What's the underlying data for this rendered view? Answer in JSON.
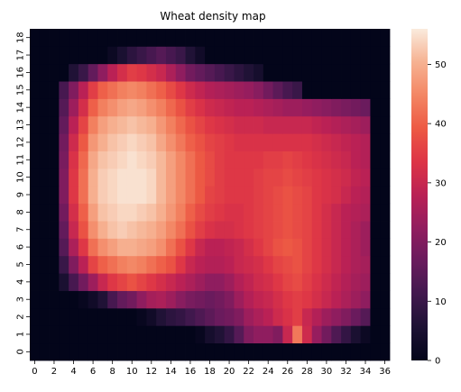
{
  "chart_data": {
    "type": "heatmap",
    "title": "Wheat density map",
    "xlabel": "",
    "ylabel": "",
    "x_ticks": [
      "0",
      "2",
      "4",
      "6",
      "8",
      "10",
      "12",
      "14",
      "16",
      "18",
      "20",
      "22",
      "24",
      "26",
      "28",
      "30",
      "32",
      "34",
      "36"
    ],
    "y_ticks": [
      "0",
      "1",
      "2",
      "3",
      "4",
      "5",
      "6",
      "7",
      "8",
      "9",
      "10",
      "11",
      "12",
      "13",
      "14",
      "15",
      "16",
      "17",
      "18"
    ],
    "colorbar": {
      "min": 0,
      "max": 56,
      "ticks": [
        "0",
        "10",
        "20",
        "30",
        "40",
        "50"
      ]
    },
    "colormap": "rocket",
    "grid": false,
    "legend": "colorbar-right",
    "columns": 37,
    "rows": 19,
    "cells_row0_bottom": [
      [
        0,
        0,
        0,
        0,
        0,
        0,
        0,
        0,
        0,
        0,
        0,
        0,
        0,
        0,
        0,
        0,
        0,
        0,
        0,
        0,
        0,
        0,
        0,
        0,
        0,
        0,
        0,
        0,
        0,
        0,
        0,
        0,
        0,
        0,
        0,
        0,
        0
      ],
      [
        0,
        0,
        0,
        0,
        0,
        0,
        0,
        0,
        0,
        0,
        0,
        0,
        0,
        0,
        0,
        0,
        0,
        1,
        4,
        6,
        9,
        14,
        20,
        22,
        22,
        20,
        30,
        43,
        31,
        23,
        18,
        13,
        9,
        5,
        2,
        0,
        0
      ],
      [
        0,
        0,
        0,
        0,
        0,
        0,
        0,
        0,
        0,
        0,
        0,
        1,
        3,
        6,
        8,
        9,
        11,
        13,
        15,
        17,
        18,
        20,
        24,
        26,
        28,
        31,
        33,
        35,
        30,
        27,
        24,
        22,
        20,
        17,
        14,
        0,
        0
      ],
      [
        0,
        0,
        0,
        0,
        0,
        1,
        3,
        6,
        12,
        16,
        18,
        22,
        25,
        26,
        24,
        21,
        19,
        18,
        17,
        18,
        20,
        24,
        27,
        29,
        30,
        32,
        34,
        35,
        34,
        32,
        30,
        28,
        26,
        24,
        22,
        0,
        0
      ],
      [
        0,
        0,
        0,
        5,
        12,
        18,
        24,
        30,
        34,
        36,
        38,
        36,
        34,
        32,
        30,
        28,
        26,
        24,
        22,
        22,
        24,
        27,
        29,
        31,
        32,
        34,
        36,
        37,
        35,
        33,
        31,
        29,
        27,
        25,
        24,
        0,
        0
      ],
      [
        0,
        0,
        0,
        10,
        20,
        28,
        36,
        40,
        42,
        44,
        45,
        44,
        42,
        40,
        38,
        34,
        30,
        28,
        27,
        27,
        28,
        30,
        31,
        32,
        34,
        36,
        37,
        38,
        36,
        34,
        32,
        30,
        28,
        26,
        25,
        0,
        0
      ],
      [
        0,
        0,
        0,
        14,
        26,
        34,
        42,
        46,
        48,
        50,
        50,
        49,
        48,
        46,
        42,
        38,
        34,
        30,
        28,
        28,
        29,
        30,
        32,
        34,
        36,
        38,
        39,
        38,
        36,
        34,
        32,
        30,
        28,
        26,
        24,
        0,
        0
      ],
      [
        0,
        0,
        0,
        16,
        30,
        38,
        46,
        50,
        52,
        53,
        52,
        51,
        50,
        48,
        45,
        42,
        38,
        35,
        33,
        32,
        32,
        33,
        34,
        35,
        36,
        37,
        38,
        37,
        36,
        34,
        32,
        30,
        28,
        26,
        24,
        0,
        0
      ],
      [
        0,
        0,
        0,
        18,
        32,
        40,
        48,
        52,
        53,
        54,
        54,
        53,
        52,
        50,
        47,
        44,
        40,
        37,
        35,
        34,
        33,
        33,
        34,
        35,
        36,
        37,
        38,
        37,
        36,
        34,
        32,
        30,
        28,
        27,
        26,
        0,
        0
      ],
      [
        0,
        0,
        0,
        20,
        34,
        42,
        50,
        53,
        54,
        55,
        55,
        55,
        54,
        51,
        48,
        45,
        42,
        39,
        36,
        35,
        34,
        34,
        34,
        35,
        36,
        37,
        38,
        37,
        36,
        34,
        33,
        32,
        30,
        28,
        27,
        0,
        0
      ],
      [
        0,
        0,
        0,
        20,
        34,
        42,
        50,
        53,
        54,
        55,
        55,
        55,
        54,
        51,
        48,
        45,
        42,
        39,
        37,
        35,
        34,
        34,
        34,
        35,
        36,
        36,
        37,
        36,
        35,
        34,
        33,
        32,
        31,
        29,
        28,
        0,
        0
      ],
      [
        0,
        0,
        0,
        19,
        33,
        41,
        49,
        52,
        53,
        54,
        55,
        54,
        53,
        51,
        48,
        45,
        42,
        39,
        37,
        35,
        34,
        34,
        34,
        34,
        35,
        35,
        36,
        35,
        34,
        33,
        32,
        31,
        30,
        28,
        27,
        0,
        0
      ],
      [
        0,
        0,
        0,
        18,
        31,
        39,
        47,
        50,
        52,
        53,
        54,
        53,
        52,
        49,
        46,
        43,
        40,
        38,
        36,
        35,
        34,
        33,
        33,
        33,
        33,
        33,
        33,
        33,
        33,
        32,
        31,
        30,
        29,
        28,
        27,
        0,
        0
      ],
      [
        0,
        0,
        0,
        16,
        28,
        36,
        44,
        48,
        50,
        51,
        52,
        51,
        50,
        47,
        44,
        41,
        38,
        36,
        34,
        33,
        32,
        31,
        31,
        31,
        30,
        30,
        30,
        30,
        30,
        29,
        28,
        27,
        26,
        25,
        24,
        0,
        0
      ],
      [
        0,
        0,
        0,
        14,
        24,
        32,
        40,
        44,
        46,
        48,
        49,
        48,
        46,
        44,
        41,
        38,
        35,
        33,
        31,
        30,
        29,
        28,
        28,
        27,
        26,
        25,
        24,
        24,
        23,
        22,
        21,
        20,
        19,
        18,
        17,
        0,
        0
      ],
      [
        0,
        0,
        0,
        12,
        20,
        28,
        35,
        40,
        42,
        44,
        45,
        44,
        42,
        40,
        37,
        34,
        31,
        29,
        27,
        26,
        25,
        24,
        23,
        21,
        18,
        15,
        12,
        10,
        0,
        0,
        0,
        0,
        0,
        0,
        0,
        0,
        0
      ],
      [
        0,
        0,
        0,
        0,
        6,
        10,
        16,
        22,
        28,
        32,
        35,
        34,
        32,
        30,
        26,
        22,
        18,
        16,
        14,
        12,
        10,
        8,
        6,
        4,
        0,
        0,
        0,
        0,
        0,
        0,
        0,
        0,
        0,
        0,
        0,
        0,
        0
      ],
      [
        0,
        0,
        0,
        0,
        0,
        0,
        0,
        0,
        2,
        5,
        8,
        10,
        12,
        14,
        12,
        10,
        6,
        3,
        0,
        0,
        0,
        0,
        0,
        0,
        0,
        0,
        0,
        0,
        0,
        0,
        0,
        0,
        0,
        0,
        0,
        0,
        0
      ],
      [
        0,
        0,
        0,
        0,
        0,
        0,
        0,
        0,
        0,
        0,
        0,
        0,
        0,
        0,
        0,
        0,
        0,
        0,
        0,
        0,
        0,
        0,
        0,
        0,
        0,
        0,
        0,
        0,
        0,
        0,
        0,
        0,
        0,
        0,
        0,
        0,
        0
      ]
    ]
  }
}
